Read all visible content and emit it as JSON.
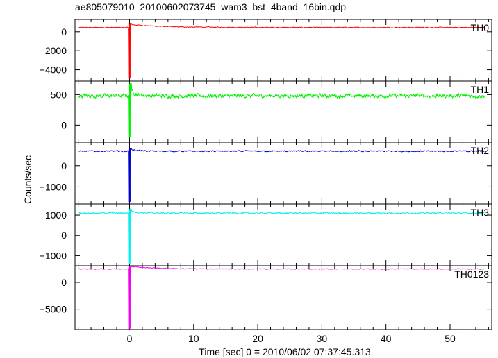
{
  "chart_data": {
    "type": "line",
    "title": "ae805079010_20100602073745_wam3_bst_4band_16bin.qdp",
    "xlabel": "Time [sec] 0 = 2010/06/02 07:37:45.313",
    "ylabel": "Counts/sec",
    "xlim": [
      -8.5,
      56.5
    ],
    "x_ticks": [
      0,
      10,
      20,
      30,
      40,
      50
    ],
    "grid": false,
    "series": [
      {
        "name": "TH0",
        "color": "#ff0000",
        "ylim": [
          -5200,
          1300
        ],
        "y_ticks": [
          0,
          -2000,
          -4000
        ],
        "baseline": 450,
        "noise": 70,
        "spike_peak": 900,
        "spike_min": -4900,
        "rebound": 750,
        "rebound_decay": 5
      },
      {
        "name": "TH1",
        "color": "#00ee00",
        "ylim": [
          -280,
          720
        ],
        "y_ticks": [
          0,
          500
        ],
        "baseline": 480,
        "noise": 55,
        "spike_peak": 680,
        "spike_min": -200,
        "rebound": 560,
        "rebound_decay": 0.8
      },
      {
        "name": "TH2",
        "color": "#0000cc",
        "ylim": [
          -1800,
          1100
        ],
        "y_ticks": [
          0,
          -1000
        ],
        "baseline": 680,
        "noise": 50,
        "spike_peak": 820,
        "spike_min": -1700,
        "rebound": 760,
        "rebound_decay": 1
      },
      {
        "name": "TH3",
        "color": "#00eeee",
        "ylim": [
          -1500,
          1550
        ],
        "y_ticks": [
          1000,
          0,
          -1000
        ],
        "baseline": 1100,
        "noise": 55,
        "spike_peak": 1300,
        "spike_min": -1380,
        "rebound": 1200,
        "rebound_decay": 1
      },
      {
        "name": "TH0123",
        "color": "#ee00ee",
        "ylim": [
          -8800,
          3100
        ],
        "y_ticks": [
          0,
          -5000
        ],
        "baseline": 2500,
        "noise": 110,
        "spike_peak": 3000,
        "spike_min": -8600,
        "rebound": 2950,
        "rebound_decay": 4
      }
    ]
  }
}
